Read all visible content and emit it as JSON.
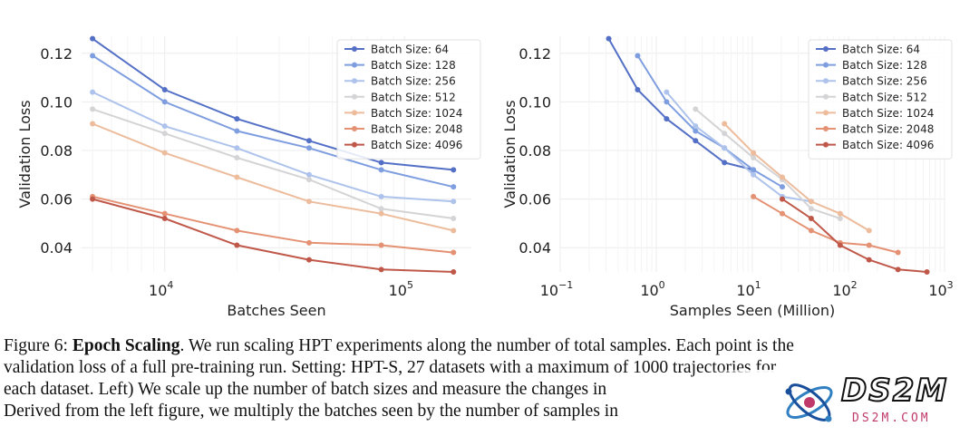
{
  "chart_data": [
    {
      "type": "line",
      "title": "",
      "xlabel": "Batches Seen",
      "ylabel": "Validation Loss",
      "xscale": "log",
      "xlim": [
        4500,
        190000
      ],
      "ylim": [
        0.03,
        0.127
      ],
      "yticks": [
        0.04,
        0.06,
        0.08,
        0.1,
        0.12
      ],
      "ytick_labels": [
        "0.04",
        "0.06",
        "0.08",
        "0.10",
        "0.12"
      ],
      "xticks": [
        10000,
        100000
      ],
      "xtick_labels": [
        {
          "base": "10",
          "exp": "4"
        },
        {
          "base": "10",
          "exp": "5"
        }
      ],
      "legend_position": "top-right",
      "grid": true,
      "series": [
        {
          "name": "Batch Size: 64",
          "color": "#5470c6",
          "x": [
            5000,
            10000,
            20000,
            40000,
            80000,
            160000
          ],
          "y": [
            0.126,
            0.105,
            0.093,
            0.084,
            0.075,
            0.072
          ]
        },
        {
          "name": "Batch Size: 128",
          "color": "#7f9ee0",
          "x": [
            5000,
            10000,
            20000,
            40000,
            80000,
            160000
          ],
          "y": [
            0.119,
            0.1,
            0.088,
            0.081,
            0.072,
            0.065
          ]
        },
        {
          "name": "Batch Size: 256",
          "color": "#aec3ec",
          "x": [
            5000,
            10000,
            20000,
            40000,
            80000,
            160000
          ],
          "y": [
            0.104,
            0.09,
            0.081,
            0.07,
            0.061,
            0.059
          ]
        },
        {
          "name": "Batch Size: 512",
          "color": "#d4d4d6",
          "x": [
            5000,
            10000,
            20000,
            40000,
            80000,
            160000
          ],
          "y": [
            0.097,
            0.087,
            0.077,
            0.068,
            0.056,
            0.052
          ]
        },
        {
          "name": "Batch Size: 1024",
          "color": "#ecbc9c",
          "x": [
            5000,
            10000,
            20000,
            40000,
            80000,
            160000
          ],
          "y": [
            0.091,
            0.079,
            0.069,
            0.059,
            0.054,
            0.047
          ]
        },
        {
          "name": "Batch Size: 2048",
          "color": "#e49273",
          "x": [
            5000,
            10000,
            20000,
            40000,
            80000,
            160000
          ],
          "y": [
            0.061,
            0.054,
            0.047,
            0.042,
            0.041,
            0.038
          ]
        },
        {
          "name": "Batch Size: 4096",
          "color": "#c0584a",
          "x": [
            5000,
            10000,
            20000,
            40000,
            80000,
            160000
          ],
          "y": [
            0.06,
            0.052,
            0.041,
            0.035,
            0.031,
            0.03
          ]
        }
      ]
    },
    {
      "type": "line",
      "title": "",
      "xlabel": "Samples Seen (Million)",
      "ylabel": "Validation Loss",
      "xscale": "log",
      "xlim": [
        0.1,
        1000
      ],
      "ylim": [
        0.03,
        0.127
      ],
      "yticks": [
        0.04,
        0.06,
        0.08,
        0.1,
        0.12
      ],
      "ytick_labels": [
        "0.04",
        "0.06",
        "0.08",
        "0.10",
        "0.12"
      ],
      "xticks": [
        0.1,
        1,
        10,
        100,
        1000
      ],
      "xtick_labels": [
        {
          "base": "10",
          "exp": "−1"
        },
        {
          "base": "10",
          "exp": "0"
        },
        {
          "base": "10",
          "exp": "1"
        },
        {
          "base": "10",
          "exp": "2"
        },
        {
          "base": "10",
          "exp": "3"
        }
      ],
      "legend_position": "top-right",
      "grid": true,
      "series": [
        {
          "name": "Batch Size: 64",
          "color": "#5470c6",
          "x": [
            0.32,
            0.64,
            1.28,
            2.56,
            5.12,
            10.24
          ],
          "y": [
            0.126,
            0.105,
            0.093,
            0.084,
            0.075,
            0.072
          ]
        },
        {
          "name": "Batch Size: 128",
          "color": "#7f9ee0",
          "x": [
            0.64,
            1.28,
            2.56,
            5.12,
            10.24,
            20.48
          ],
          "y": [
            0.119,
            0.1,
            0.088,
            0.081,
            0.072,
            0.065
          ]
        },
        {
          "name": "Batch Size: 256",
          "color": "#aec3ec",
          "x": [
            1.28,
            2.56,
            5.12,
            10.24,
            20.48,
            40.96
          ],
          "y": [
            0.104,
            0.09,
            0.081,
            0.07,
            0.061,
            0.059
          ]
        },
        {
          "name": "Batch Size: 512",
          "color": "#d4d4d6",
          "x": [
            2.56,
            5.12,
            10.24,
            20.48,
            40.96,
            81.92
          ],
          "y": [
            0.097,
            0.087,
            0.077,
            0.068,
            0.056,
            0.052
          ]
        },
        {
          "name": "Batch Size: 1024",
          "color": "#ecbc9c",
          "x": [
            5.12,
            10.24,
            20.48,
            40.96,
            81.92,
            163.84
          ],
          "y": [
            0.091,
            0.079,
            0.069,
            0.059,
            0.054,
            0.047
          ]
        },
        {
          "name": "Batch Size: 2048",
          "color": "#e49273",
          "x": [
            10.24,
            20.48,
            40.96,
            81.92,
            163.84,
            327.68
          ],
          "y": [
            0.061,
            0.054,
            0.047,
            0.042,
            0.041,
            0.038
          ]
        },
        {
          "name": "Batch Size: 4096",
          "color": "#c0584a",
          "x": [
            20.48,
            40.96,
            81.92,
            163.84,
            327.68,
            655.36
          ],
          "y": [
            0.06,
            0.052,
            0.041,
            0.035,
            0.031,
            0.03
          ]
        }
      ]
    }
  ],
  "caption": {
    "label": "Figure 6:",
    "title": "Epoch Scaling",
    "line1_rest": ". We run scaling HPT experiments along the number of total samples. Each point is the",
    "line2": "validation loss of a full pre-training run. Setting: HPT-S, 27 datasets with a maximum of 1000 trajectories for",
    "line3": "each dataset. Left) We scale up the number of batch sizes and measure the changes in",
    "line4": "Derived from the left figure, we multiply the batches seen by the number of samples in"
  },
  "watermark": {
    "text": "DS2M",
    "subtext": "DS2M.COM"
  }
}
